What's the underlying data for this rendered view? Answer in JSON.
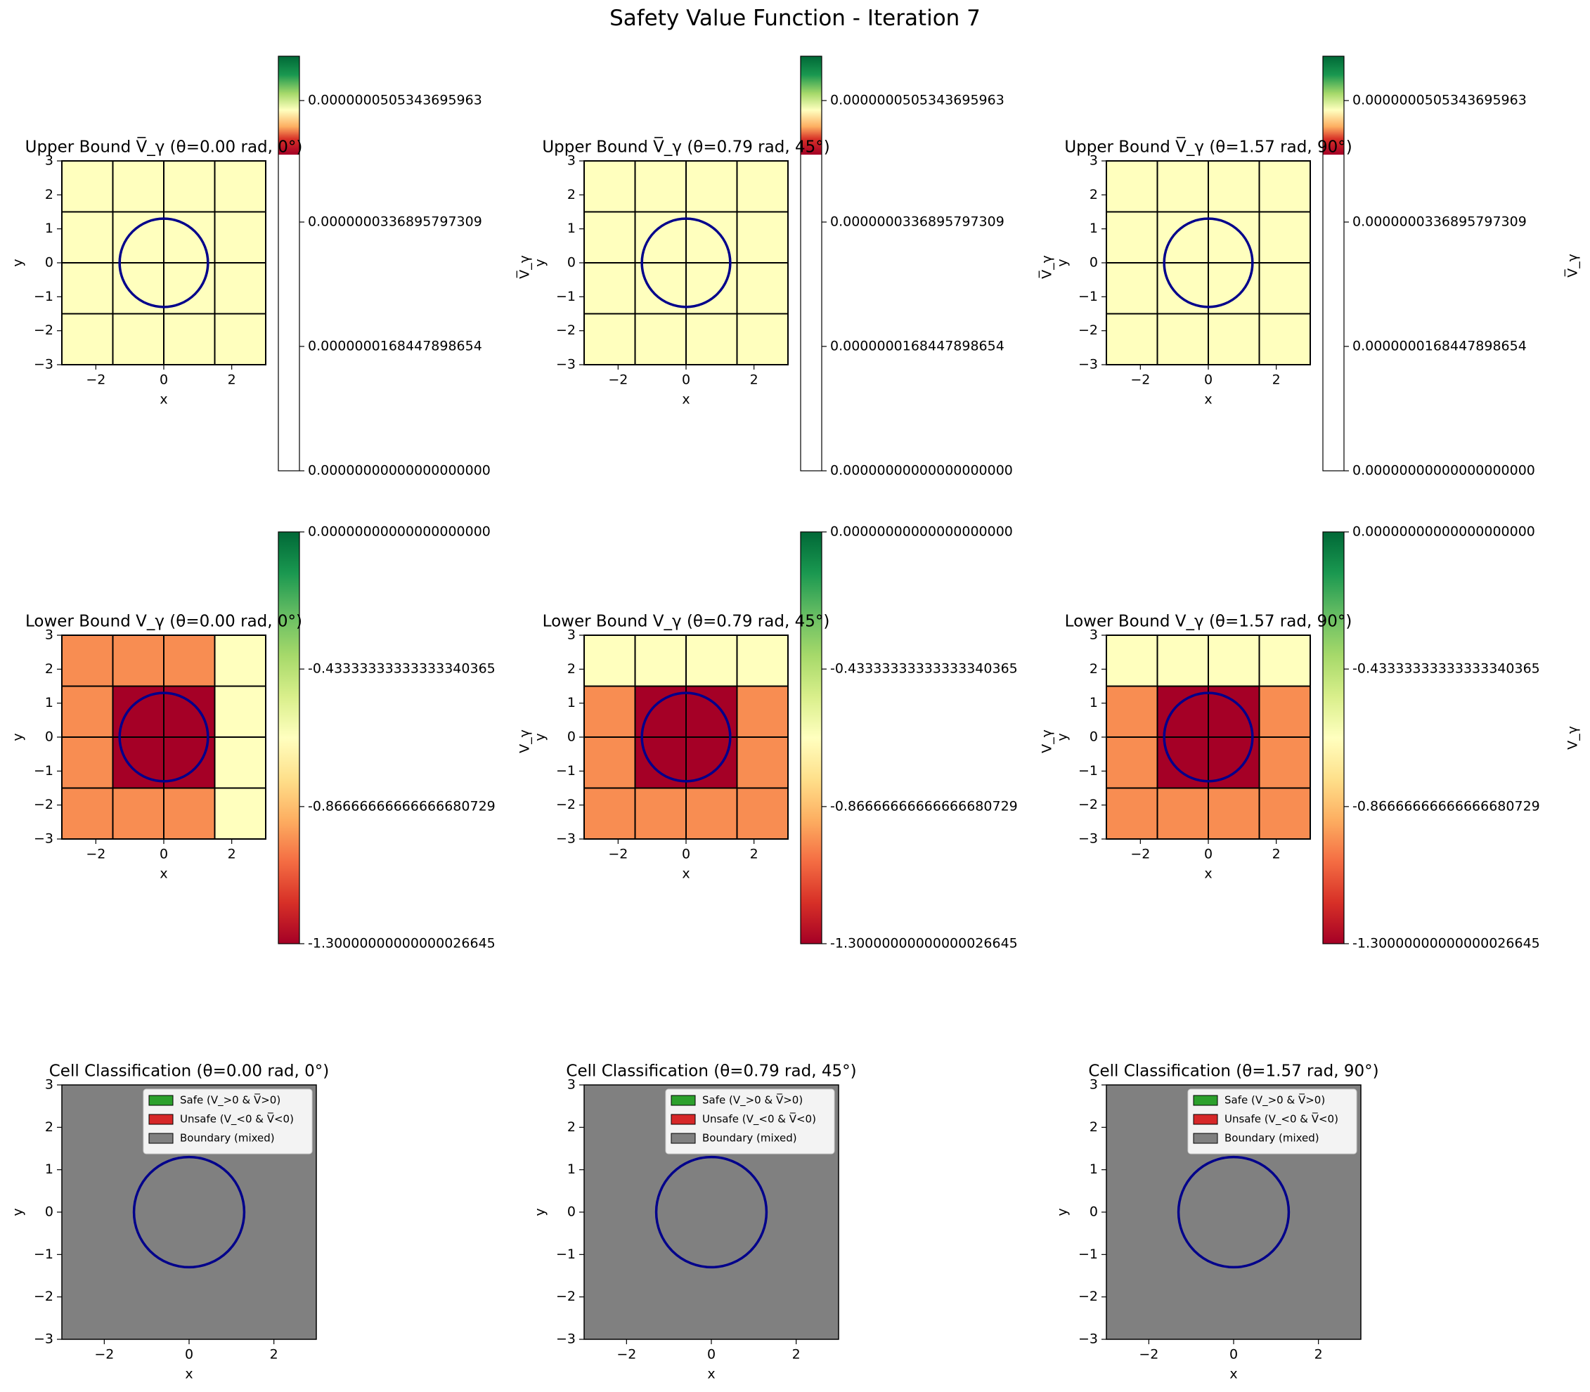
{
  "suptitle": "Safety Value Function - Iteration 7",
  "colormap": [
    "#a50026",
    "#d73027",
    "#f46d43",
    "#fdae61",
    "#fee08b",
    "#ffffbf",
    "#d9ef8b",
    "#a6d96a",
    "#66bd63",
    "#1a9850",
    "#006837"
  ],
  "colors": {
    "circle": "#00008b",
    "grid_line": "#000000",
    "cell_unsafe_dark": "#a50026",
    "cell_mid": "#f88d52",
    "cell_light": "#ffffbe",
    "classification_gray": "#808080",
    "legend_safe": "#2ca02c",
    "legend_unsafe": "#d62728",
    "legend_boundary": "#808080"
  },
  "chart_data": [
    {
      "type": "heatmap",
      "row": 0,
      "col": 0,
      "title": "Upper Bound V̅_γ (θ=0.00 rad, 0°)",
      "xlabel": "x",
      "ylabel": "y",
      "colorbar_label": "",
      "xlim": [
        -3,
        3
      ],
      "ylim": [
        -3,
        3
      ],
      "xticks": [
        "−2",
        "0",
        "2"
      ],
      "yticks": [
        "−3",
        "−2",
        "−1",
        "0",
        "1",
        "2",
        "3"
      ],
      "cell_edges": [
        -3,
        -1.5,
        0,
        1.5,
        3
      ],
      "cells_top_to_bottom": [
        [
          "L",
          "L",
          "L",
          "L"
        ],
        [
          "L",
          "L",
          "L",
          "L"
        ],
        [
          "L",
          "L",
          "L",
          "L"
        ],
        [
          "L",
          "L",
          "L",
          "L"
        ]
      ],
      "circle": {
        "center": [
          0,
          0
        ],
        "radius": 1.3
      },
      "colorbar": {
        "ticks": [
          "0.0000000505343695963",
          "0.0000000336895797309",
          "0.0000000168447898654",
          "0.00000000000000000000"
        ]
      }
    },
    {
      "type": "heatmap",
      "row": 0,
      "col": 1,
      "title": "Upper Bound V̅_γ (θ=0.79 rad, 45°)",
      "xlabel": "x",
      "ylabel": "y",
      "colorbar_label": "V̅_γ",
      "xlim": [
        -3,
        3
      ],
      "ylim": [
        -3,
        3
      ],
      "xticks": [
        "−2",
        "0",
        "2"
      ],
      "yticks": [
        "−3",
        "−2",
        "−1",
        "0",
        "1",
        "2",
        "3"
      ],
      "cell_edges": [
        -3,
        -1.5,
        0,
        1.5,
        3
      ],
      "cells_top_to_bottom": [
        [
          "L",
          "L",
          "L",
          "L"
        ],
        [
          "L",
          "L",
          "L",
          "L"
        ],
        [
          "L",
          "L",
          "L",
          "L"
        ],
        [
          "L",
          "L",
          "L",
          "L"
        ]
      ],
      "circle": {
        "center": [
          0,
          0
        ],
        "radius": 1.3
      },
      "colorbar": {
        "ticks": [
          "0.0000000505343695963",
          "0.0000000336895797309",
          "0.0000000168447898654",
          "0.00000000000000000000"
        ]
      }
    },
    {
      "type": "heatmap",
      "row": 0,
      "col": 2,
      "title": "Upper Bound V̅_γ (θ=1.57 rad, 90°)",
      "xlabel": "x",
      "ylabel": "y",
      "colorbar_label": "V̅_γ",
      "xlim": [
        -3,
        3
      ],
      "ylim": [
        -3,
        3
      ],
      "xticks": [
        "−2",
        "0",
        "2"
      ],
      "yticks": [
        "−3",
        "−2",
        "−1",
        "0",
        "1",
        "2",
        "3"
      ],
      "cell_edges": [
        -3,
        -1.5,
        0,
        1.5,
        3
      ],
      "cells_top_to_bottom": [
        [
          "L",
          "L",
          "L",
          "L"
        ],
        [
          "L",
          "L",
          "L",
          "L"
        ],
        [
          "L",
          "L",
          "L",
          "L"
        ],
        [
          "L",
          "L",
          "L",
          "L"
        ]
      ],
      "circle": {
        "center": [
          0,
          0
        ],
        "radius": 1.3
      },
      "colorbar": {
        "ticks": [
          "0.0000000505343695963",
          "0.0000000336895797309",
          "0.0000000168447898654",
          "0.00000000000000000000"
        ]
      }
    },
    {
      "type": "heatmap",
      "row": 1,
      "col": 0,
      "title": "Lower Bound V_γ (θ=0.00 rad, 0°)",
      "xlabel": "x",
      "ylabel": "y",
      "colorbar_label": "",
      "xlim": [
        -3,
        3
      ],
      "ylim": [
        -3,
        3
      ],
      "xticks": [
        "−2",
        "0",
        "2"
      ],
      "yticks": [
        "−3",
        "−2",
        "−1",
        "0",
        "1",
        "2",
        "3"
      ],
      "cell_edges": [
        -3,
        -1.5,
        0,
        1.5,
        3
      ],
      "cells_top_to_bottom": [
        [
          "M",
          "M",
          "M",
          "L"
        ],
        [
          "M",
          "D",
          "D",
          "L"
        ],
        [
          "M",
          "D",
          "D",
          "L"
        ],
        [
          "M",
          "M",
          "M",
          "L"
        ]
      ],
      "circle": {
        "center": [
          0,
          0
        ],
        "radius": 1.3
      },
      "colorbar": {
        "ticks": [
          "0.00000000000000000000",
          "-0.43333333333333340365",
          "-0.86666666666666680729",
          "-1.30000000000000026645"
        ]
      }
    },
    {
      "type": "heatmap",
      "row": 1,
      "col": 1,
      "title": "Lower Bound V_γ (θ=0.79 rad, 45°)",
      "xlabel": "x",
      "ylabel": "y",
      "colorbar_label": "V_γ",
      "xlim": [
        -3,
        3
      ],
      "ylim": [
        -3,
        3
      ],
      "xticks": [
        "−2",
        "0",
        "2"
      ],
      "yticks": [
        "−3",
        "−2",
        "−1",
        "0",
        "1",
        "2",
        "3"
      ],
      "cell_edges": [
        -3,
        -1.5,
        0,
        1.5,
        3
      ],
      "cells_top_to_bottom": [
        [
          "L",
          "L",
          "L",
          "L"
        ],
        [
          "M",
          "D",
          "D",
          "M"
        ],
        [
          "M",
          "D",
          "D",
          "M"
        ],
        [
          "M",
          "M",
          "M",
          "M"
        ]
      ],
      "circle": {
        "center": [
          0,
          0
        ],
        "radius": 1.3
      },
      "colorbar": {
        "ticks": [
          "0.00000000000000000000",
          "-0.43333333333333340365",
          "-0.86666666666666680729",
          "-1.30000000000000026645"
        ]
      }
    },
    {
      "type": "heatmap",
      "row": 1,
      "col": 2,
      "title": "Lower Bound V_γ (θ=1.57 rad, 90°)",
      "xlabel": "x",
      "ylabel": "y",
      "colorbar_label": "V_γ",
      "xlim": [
        -3,
        3
      ],
      "ylim": [
        -3,
        3
      ],
      "xticks": [
        "−2",
        "0",
        "2"
      ],
      "yticks": [
        "−3",
        "−2",
        "−1",
        "0",
        "1",
        "2",
        "3"
      ],
      "cell_edges": [
        -3,
        -1.5,
        0,
        1.5,
        3
      ],
      "cells_top_to_bottom": [
        [
          "L",
          "L",
          "L",
          "L"
        ],
        [
          "M",
          "D",
          "D",
          "M"
        ],
        [
          "M",
          "D",
          "D",
          "M"
        ],
        [
          "M",
          "M",
          "M",
          "M"
        ]
      ],
      "circle": {
        "center": [
          0,
          0
        ],
        "radius": 1.3
      },
      "colorbar": {
        "ticks": [
          "0.00000000000000000000",
          "-0.43333333333333340365",
          "-0.86666666666666680729",
          "-1.30000000000000026645"
        ]
      }
    },
    {
      "type": "heatmap",
      "row": 2,
      "col": 0,
      "title": "Cell Classification (θ=0.00 rad, 0°)",
      "xlabel": "x",
      "ylabel": "y",
      "xlim": [
        -3,
        3
      ],
      "ylim": [
        -3,
        3
      ],
      "xticks": [
        "−2",
        "0",
        "2"
      ],
      "yticks": [
        "−3",
        "−2",
        "−1",
        "0",
        "1",
        "2",
        "3"
      ],
      "fill": "boundary",
      "circle": {
        "center": [
          0,
          0
        ],
        "radius": 1.3
      },
      "legend": [
        "Safe (V_>0 & V̅>0)",
        "Unsafe (V_<0 & V̅<0)",
        "Boundary (mixed)"
      ],
      "legend_position": "upper right"
    },
    {
      "type": "heatmap",
      "row": 2,
      "col": 1,
      "title": "Cell Classification (θ=0.79 rad, 45°)",
      "xlabel": "x",
      "ylabel": "y",
      "xlim": [
        -3,
        3
      ],
      "ylim": [
        -3,
        3
      ],
      "xticks": [
        "−2",
        "0",
        "2"
      ],
      "yticks": [
        "−3",
        "−2",
        "−1",
        "0",
        "1",
        "2",
        "3"
      ],
      "fill": "boundary",
      "circle": {
        "center": [
          0,
          0
        ],
        "radius": 1.3
      },
      "legend": [
        "Safe (V_>0 & V̅>0)",
        "Unsafe (V_<0 & V̅<0)",
        "Boundary (mixed)"
      ],
      "legend_position": "upper right"
    },
    {
      "type": "heatmap",
      "row": 2,
      "col": 2,
      "title": "Cell Classification (θ=1.57 rad, 90°)",
      "xlabel": "x",
      "ylabel": "y",
      "xlim": [
        -3,
        3
      ],
      "ylim": [
        -3,
        3
      ],
      "xticks": [
        "−2",
        "0",
        "2"
      ],
      "yticks": [
        "−3",
        "−2",
        "−1",
        "0",
        "1",
        "2",
        "3"
      ],
      "fill": "boundary",
      "circle": {
        "center": [
          0,
          0
        ],
        "radius": 1.3
      },
      "legend": [
        "Safe (V_>0 & V̅>0)",
        "Unsafe (V_<0 & V̅<0)",
        "Boundary (mixed)"
      ],
      "legend_position": "upper right"
    }
  ]
}
